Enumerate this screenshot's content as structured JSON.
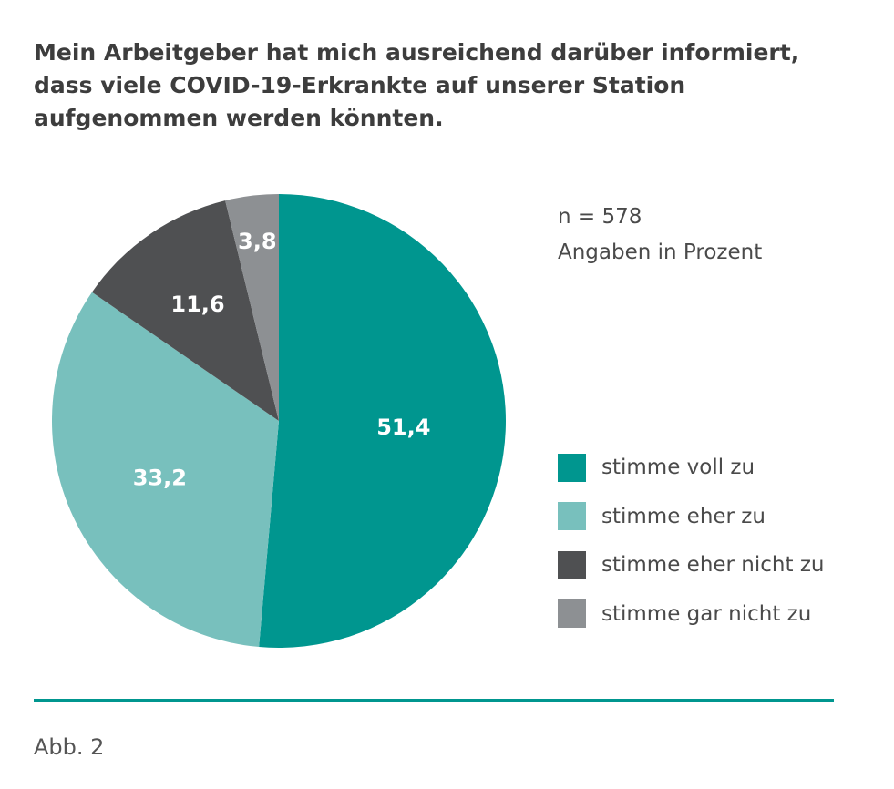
{
  "chart_data": {
    "type": "pie",
    "title": "Mein Arbeitgeber hat mich ausreichend darüber informiert, dass viele COVID-19-Erkrankte auf unserer Station aufgenommen werden könnten.",
    "slices": [
      {
        "label": "stimme voll zu",
        "value": 51.4,
        "value_label": "51,4",
        "color": "#00968f"
      },
      {
        "label": "stimme eher zu",
        "value": 33.2,
        "value_label": "33,2",
        "color": "#78c0bd"
      },
      {
        "label": "stimme eher nicht zu",
        "value": 11.6,
        "value_label": "11,6",
        "color": "#4f5052"
      },
      {
        "label": "stimme gar nicht zu",
        "value": 3.8,
        "value_label": "3,8",
        "color": "#8d9093"
      }
    ],
    "legend_placement": "right",
    "annotations": [
      "n = 578",
      "Angaben in Prozent"
    ]
  },
  "sample_size": "n = 578",
  "unit_note": "Angaben in Prozent",
  "caption": "Abb. 2",
  "accent_color": "#00968f"
}
